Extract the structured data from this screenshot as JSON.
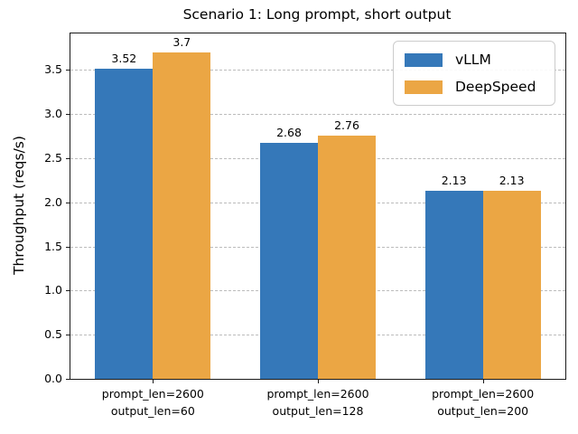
{
  "chart_data": {
    "type": "bar",
    "title": "Scenario 1: Long prompt, short output",
    "xlabel": "",
    "ylabel": "Throughput (reqs/s)",
    "categories": [
      "prompt_len=2600\noutput_len=60",
      "prompt_len=2600\noutput_len=128",
      "prompt_len=2600\noutput_len=200"
    ],
    "series": [
      {
        "name": "vLLM",
        "color": "#3578b9",
        "values": [
          3.52,
          2.68,
          2.13
        ],
        "value_labels": [
          "3.52",
          "2.68",
          "2.13"
        ]
      },
      {
        "name": "DeepSpeed",
        "color": "#eba644",
        "values": [
          3.7,
          2.76,
          2.13
        ],
        "value_labels": [
          "3.7",
          "2.76",
          "2.13"
        ]
      }
    ],
    "yticks": [
      "0.0",
      "0.5",
      "1.0",
      "1.5",
      "2.0",
      "2.5",
      "3.0",
      "3.5"
    ],
    "ylim": [
      0,
      3.915
    ],
    "grid": {
      "axis": "y",
      "style": "dashed",
      "color": "#bcbcbc"
    },
    "legend": {
      "position": "upper right"
    },
    "colors": {
      "vLLM": "#3578b9",
      "DeepSpeed": "#eba644",
      "background": "#ffffff",
      "axis": "#1a1a1a"
    }
  }
}
